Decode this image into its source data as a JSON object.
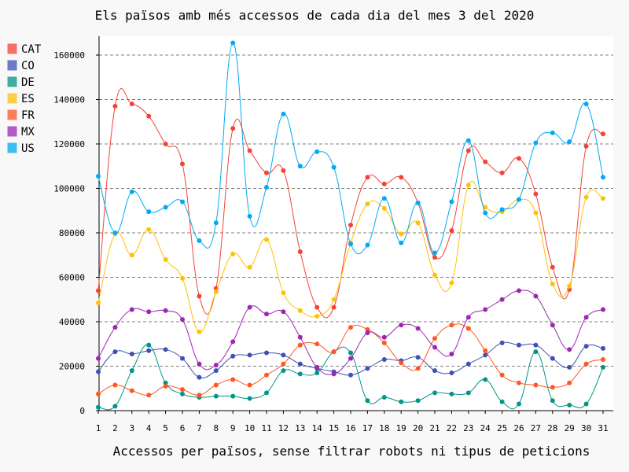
{
  "chart_data": {
    "type": "line",
    "title": "Els països amb més accessos de cada dia del mes 3 del 2020",
    "xlabel": "Accessos per països, sense filtrar robots ni tipus de peticions",
    "ylabel": "",
    "x": [
      1,
      2,
      3,
      4,
      5,
      6,
      7,
      8,
      9,
      10,
      11,
      12,
      13,
      14,
      15,
      16,
      17,
      18,
      19,
      20,
      21,
      22,
      23,
      24,
      25,
      26,
      27,
      28,
      29,
      30,
      31
    ],
    "ylim": [
      0,
      168000
    ],
    "yticks": [
      0,
      20000,
      40000,
      60000,
      80000,
      100000,
      120000,
      140000,
      160000
    ],
    "grid": "horizontal dashed",
    "legend": "top-left",
    "series": [
      {
        "name": "CAT",
        "color": "#f44336",
        "values": [
          54000,
          137000,
          138000,
          132500,
          120000,
          111000,
          51500,
          55000,
          127000,
          117000,
          107000,
          108000,
          71500,
          46500,
          46500,
          83500,
          105000,
          102000,
          105000,
          93500,
          69000,
          81000,
          117000,
          112000,
          107000,
          113500,
          97500,
          64500,
          54500,
          119000,
          124500
        ]
      },
      {
        "name": "CO",
        "color": "#3f51b5",
        "values": [
          17500,
          26500,
          25500,
          27000,
          27500,
          23500,
          15000,
          18000,
          24500,
          25000,
          26000,
          25000,
          21000,
          19000,
          17500,
          16000,
          19000,
          23000,
          22500,
          24000,
          18000,
          17000,
          21000,
          25000,
          30500,
          29500,
          29500,
          23500,
          19500,
          29000,
          28000
        ]
      },
      {
        "name": "DE",
        "color": "#009688",
        "values": [
          1500,
          2000,
          18000,
          29500,
          12500,
          7500,
          6000,
          6500,
          6500,
          5500,
          8000,
          18000,
          16500,
          17000,
          26500,
          26000,
          4500,
          6000,
          4000,
          4500,
          8000,
          7500,
          8000,
          14000,
          4000,
          3000,
          26500,
          4500,
          2500,
          3000,
          19500
        ]
      },
      {
        "name": "ES",
        "color": "#ffc107",
        "values": [
          48500,
          79500,
          70000,
          81500,
          68000,
          59500,
          35500,
          53500,
          70500,
          64500,
          77000,
          53000,
          45000,
          42500,
          50000,
          75500,
          93000,
          91000,
          79500,
          84500,
          61000,
          57500,
          101500,
          91500,
          89500,
          95000,
          89000,
          57000,
          56000,
          96000,
          95500
        ]
      },
      {
        "name": "FR",
        "color": "#ff5722",
        "values": [
          7500,
          11500,
          9000,
          7000,
          11000,
          9500,
          7000,
          11500,
          14000,
          11500,
          16000,
          21000,
          29500,
          30000,
          26500,
          37500,
          36500,
          30500,
          21500,
          19000,
          32500,
          38500,
          37000,
          27000,
          16000,
          12500,
          11500,
          10500,
          12500,
          21000,
          23000
        ]
      },
      {
        "name": "MX",
        "color": "#9c27b0",
        "values": [
          23500,
          37500,
          45500,
          44500,
          45000,
          41000,
          21000,
          20500,
          31000,
          46500,
          43500,
          44500,
          33000,
          19500,
          16500,
          23500,
          35000,
          33000,
          38500,
          37000,
          28500,
          25500,
          42000,
          45500,
          50000,
          54000,
          51500,
          38500,
          27500,
          42000,
          45500
        ]
      },
      {
        "name": "US",
        "color": "#03a9f4",
        "values": [
          105500,
          80000,
          98500,
          89500,
          91500,
          94000,
          76500,
          84500,
          165500,
          87500,
          100500,
          133500,
          110000,
          116500,
          109500,
          75000,
          74500,
          95500,
          75500,
          93500,
          71000,
          94000,
          121500,
          89000,
          90500,
          95000,
          120500,
          125000,
          121000,
          138000,
          105000
        ]
      }
    ]
  }
}
